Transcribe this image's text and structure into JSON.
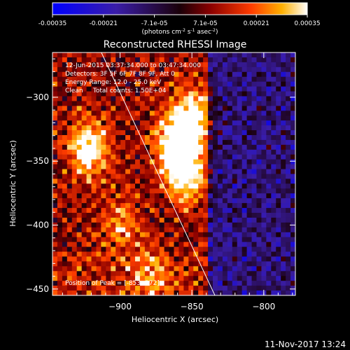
{
  "colorbar": {
    "ticks": [
      "-0.00035",
      "-0.00021",
      "-7.1e-05",
      "7.1e-05",
      "0.00021",
      "0.00035"
    ],
    "units_main": "(photons cm",
    "units_sup1": "-2",
    "units_mid": " s",
    "units_sup2": "-1",
    "units_end": " asec",
    "units_sup3": "-2",
    "units_close": ")"
  },
  "chart_data": {
    "type": "heatmap",
    "title": "Reconstructed RHESSI Image",
    "xlabel": "Heliocentric X (arcsec)",
    "ylabel": "Heliocentric Y (arcsec)",
    "xlim": [
      -947,
      -778
    ],
    "ylim": [
      -455,
      -265
    ],
    "x_ticks": [
      {
        "value": -900,
        "label": "−900"
      },
      {
        "value": -850,
        "label": "−850"
      },
      {
        "value": -800,
        "label": "−800"
      }
    ],
    "y_ticks": [
      {
        "value": -300,
        "label": "−300"
      },
      {
        "value": -350,
        "label": "−350"
      },
      {
        "value": -400,
        "label": "−400"
      },
      {
        "value": -450,
        "label": "−450"
      }
    ],
    "color_range": [
      -0.00035,
      0.00035
    ],
    "peak": {
      "x": -853,
      "y": -372
    },
    "hot_spots": [
      {
        "x": -855,
        "y": -360,
        "strength": 1.0
      },
      {
        "x": -850,
        "y": -315,
        "strength": 0.9
      },
      {
        "x": -862,
        "y": -335,
        "strength": 0.85
      },
      {
        "x": -922,
        "y": -340,
        "strength": 0.9
      },
      {
        "x": -900,
        "y": -400,
        "strength": 0.45
      },
      {
        "x": -880,
        "y": -440,
        "strength": 0.45
      }
    ],
    "limb_line": [
      {
        "x": -913,
        "y": -265
      },
      {
        "x": -834,
        "y": -455
      }
    ],
    "annotations": {
      "time": "12-Jun-2015 03:37:34.000 to 03:47:34.000",
      "detectors": "Detectors: 3F 5F 6F 7F 8F 9F, Att 0",
      "energy": "Energy Range: 12.0 - 25.0 keV",
      "clean": "Clean     Total counts: 1.50E+04",
      "peak_label": "Position of Peak = [-853,-372]"
    }
  },
  "footer": {
    "timestamp": "11-Nov-2017 13:24"
  }
}
